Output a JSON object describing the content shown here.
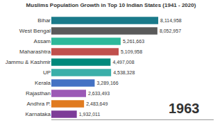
{
  "chart_data": {
    "type": "bar",
    "title": "Muslims Population Growth in Top 10 Indian States (1941 - 2020)",
    "orientation": "horizontal",
    "categories": [
      "Bihar",
      "West Bengal",
      "Assam",
      "Maharashtra",
      "Jammu & Kashmir",
      "UP",
      "Kerala",
      "Rajasthan",
      "Andhra P.",
      "Karnataka"
    ],
    "values": [
      8114958,
      8052957,
      5261663,
      5109958,
      4497008,
      4538328,
      3289166,
      2633493,
      2483649,
      1932011
    ],
    "value_labels": [
      "8,114,958",
      "8,052,957",
      "5,261,663",
      "5,109,958",
      "4,497,008",
      "4,538,328",
      "3,289,166",
      "2,633,493",
      "2,483,649",
      "1,932,011"
    ],
    "colors": [
      "#1a7a8a",
      "#5a5a5a",
      "#2db89a",
      "#c0504d",
      "#00897b",
      "#3aafa9",
      "#4472c4",
      "#9b59b6",
      "#e07b20",
      "#7d3c98"
    ],
    "xlim": [
      0,
      12325000
    ],
    "data_labels": true,
    "tick_labels": "y",
    "grid": false,
    "annotations": [
      "1963"
    ]
  }
}
